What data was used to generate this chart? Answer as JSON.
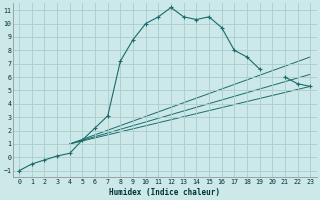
{
  "xlabel": "Humidex (Indice chaleur)",
  "background_color": "#cce8e8",
  "grid_color": "#aacccc",
  "line_color": "#1a6b6b",
  "xlim": [
    -0.5,
    23.5
  ],
  "ylim": [
    -1.5,
    11.5
  ],
  "xticks": [
    0,
    1,
    2,
    3,
    4,
    5,
    6,
    7,
    8,
    9,
    10,
    11,
    12,
    13,
    14,
    15,
    16,
    17,
    18,
    19,
    20,
    21,
    22,
    23
  ],
  "yticks": [
    -1,
    0,
    1,
    2,
    3,
    4,
    5,
    6,
    7,
    8,
    9,
    10,
    11
  ],
  "main_curve_x": [
    0,
    1,
    2,
    3,
    4,
    5,
    6,
    7,
    8,
    9,
    10,
    11,
    12,
    13,
    14,
    15,
    16,
    17,
    18,
    19,
    20,
    21,
    22,
    23
  ],
  "main_curve_y": [
    -1.0,
    -0.5,
    -0.2,
    0.1,
    0.3,
    1.3,
    2.2,
    3.1,
    7.2,
    8.8,
    10.0,
    10.5,
    11.2,
    10.5,
    10.3,
    10.5,
    9.7,
    8.0,
    7.5,
    6.6,
    null,
    6.0,
    5.5,
    5.3
  ],
  "ref_lines": [
    {
      "x": [
        4,
        23
      ],
      "y": [
        1.0,
        7.5
      ]
    },
    {
      "x": [
        4,
        23
      ],
      "y": [
        1.0,
        6.2
      ]
    },
    {
      "x": [
        4,
        23
      ],
      "y": [
        1.0,
        5.3
      ]
    }
  ]
}
